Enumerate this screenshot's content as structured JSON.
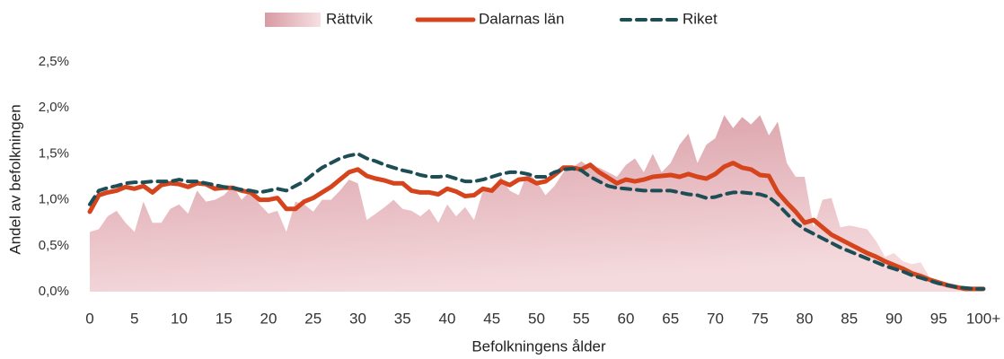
{
  "chart_data": {
    "type": "line",
    "x_label": "Befolkningens ålder",
    "y_label": "Andel av befolkningen",
    "categories": [
      "0",
      null,
      null,
      null,
      null,
      "5",
      null,
      null,
      null,
      null,
      "10",
      null,
      null,
      null,
      null,
      "15",
      null,
      null,
      null,
      null,
      "20",
      null,
      null,
      null,
      null,
      "25",
      null,
      null,
      null,
      null,
      "30",
      null,
      null,
      null,
      null,
      "35",
      null,
      null,
      null,
      null,
      "40",
      null,
      null,
      null,
      null,
      "45",
      null,
      null,
      null,
      null,
      "50",
      null,
      null,
      null,
      null,
      "55",
      null,
      null,
      null,
      null,
      "60",
      null,
      null,
      null,
      null,
      "65",
      null,
      null,
      null,
      null,
      "70",
      null,
      null,
      null,
      null,
      "75",
      null,
      null,
      null,
      null,
      "80",
      null,
      null,
      null,
      null,
      "85",
      null,
      null,
      null,
      null,
      "90",
      null,
      null,
      null,
      null,
      "95",
      null,
      null,
      null,
      null,
      "100+"
    ],
    "ylim": [
      0,
      2.5
    ],
    "yticks": [
      {
        "value": 0,
        "label": "0,0%"
      },
      {
        "value": 0.5,
        "label": "0,5%"
      },
      {
        "value": 1,
        "label": "1,0%"
      },
      {
        "value": 1.5,
        "label": "1,5%"
      },
      {
        "value": 2,
        "label": "2,0%"
      },
      {
        "value": 2.5,
        "label": "2,5%"
      }
    ],
    "grid": false,
    "legend": "top",
    "series": [
      {
        "name": "Rättvik",
        "style": "area",
        "color": "#d89aa3",
        "values": [
          0.65,
          0.68,
          0.82,
          0.88,
          0.75,
          0.65,
          0.98,
          0.75,
          0.75,
          0.9,
          0.95,
          0.85,
          1.1,
          0.98,
          1.0,
          1.05,
          1.15,
          1.0,
          1.1,
          0.95,
          0.85,
          0.88,
          0.65,
          0.98,
          0.95,
          0.87,
          1.0,
          1.0,
          1.1,
          1.22,
          1.18,
          0.78,
          0.85,
          0.92,
          1.0,
          0.9,
          0.88,
          0.82,
          0.9,
          0.75,
          0.95,
          0.82,
          0.92,
          0.78,
          1.1,
          1.08,
          1.25,
          1.1,
          1.05,
          1.3,
          1.2,
          1.05,
          1.15,
          1.3,
          1.35,
          1.42,
          1.35,
          1.35,
          1.3,
          1.25,
          1.38,
          1.45,
          1.3,
          1.5,
          1.3,
          1.4,
          1.6,
          1.72,
          1.4,
          1.6,
          1.67,
          1.92,
          1.78,
          1.9,
          1.82,
          1.92,
          1.7,
          1.85,
          1.4,
          1.25,
          1.25,
          0.7,
          1.0,
          1.02,
          0.7,
          0.72,
          0.7,
          0.68,
          0.55,
          0.38,
          0.42,
          0.33,
          0.3,
          0.32,
          0.15,
          0.12,
          0.08,
          0.05,
          0.04,
          0.03,
          0.03
        ]
      },
      {
        "name": "Dalarnas län",
        "style": "solid",
        "color": "#d5441c",
        "values": [
          0.87,
          1.05,
          1.08,
          1.1,
          1.14,
          1.12,
          1.15,
          1.08,
          1.16,
          1.18,
          1.17,
          1.14,
          1.18,
          1.17,
          1.12,
          1.13,
          1.13,
          1.1,
          1.08,
          1.0,
          1.0,
          1.02,
          0.9,
          0.9,
          0.98,
          1.02,
          1.08,
          1.14,
          1.22,
          1.3,
          1.33,
          1.26,
          1.23,
          1.21,
          1.18,
          1.18,
          1.1,
          1.08,
          1.08,
          1.06,
          1.12,
          1.09,
          1.04,
          1.05,
          1.12,
          1.1,
          1.2,
          1.16,
          1.22,
          1.23,
          1.18,
          1.2,
          1.27,
          1.35,
          1.35,
          1.33,
          1.38,
          1.3,
          1.24,
          1.18,
          1.22,
          1.2,
          1.22,
          1.25,
          1.26,
          1.27,
          1.25,
          1.28,
          1.25,
          1.23,
          1.28,
          1.36,
          1.4,
          1.35,
          1.33,
          1.27,
          1.26,
          1.08,
          0.97,
          0.87,
          0.75,
          0.78,
          0.7,
          0.62,
          0.57,
          0.52,
          0.47,
          0.42,
          0.38,
          0.33,
          0.29,
          0.25,
          0.2,
          0.17,
          0.13,
          0.1,
          0.07,
          0.05,
          0.03,
          0.03,
          0.03
        ]
      },
      {
        "name": "Riket",
        "style": "dashed",
        "color": "#1d4e55",
        "values": [
          0.95,
          1.1,
          1.13,
          1.15,
          1.18,
          1.19,
          1.19,
          1.2,
          1.2,
          1.2,
          1.22,
          1.2,
          1.2,
          1.18,
          1.16,
          1.14,
          1.13,
          1.11,
          1.1,
          1.08,
          1.1,
          1.12,
          1.1,
          1.15,
          1.2,
          1.28,
          1.35,
          1.4,
          1.45,
          1.48,
          1.5,
          1.45,
          1.42,
          1.38,
          1.35,
          1.32,
          1.3,
          1.27,
          1.25,
          1.25,
          1.26,
          1.23,
          1.2,
          1.2,
          1.22,
          1.25,
          1.28,
          1.3,
          1.3,
          1.28,
          1.25,
          1.25,
          1.3,
          1.33,
          1.34,
          1.32,
          1.25,
          1.2,
          1.15,
          1.13,
          1.12,
          1.11,
          1.1,
          1.1,
          1.1,
          1.1,
          1.08,
          1.06,
          1.05,
          1.02,
          1.03,
          1.06,
          1.08,
          1.08,
          1.07,
          1.06,
          1.03,
          0.95,
          0.85,
          0.75,
          0.68,
          0.63,
          0.58,
          0.53,
          0.48,
          0.44,
          0.4,
          0.36,
          0.32,
          0.28,
          0.25,
          0.22,
          0.18,
          0.15,
          0.12,
          0.09,
          0.07,
          0.05,
          0.04,
          0.03,
          0.03
        ]
      }
    ]
  }
}
